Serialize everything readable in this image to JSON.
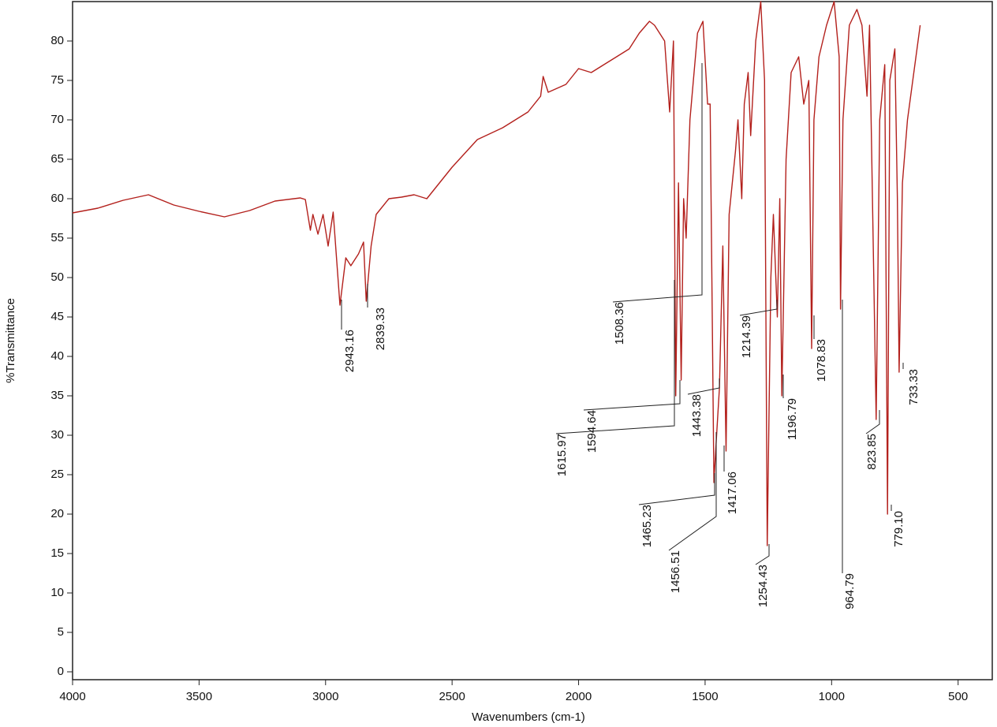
{
  "chart_data": {
    "type": "line",
    "x_label": "Wavenumbers (cm-1)",
    "y_label": "%Transmittance",
    "xlim": [
      4000,
      365
    ],
    "ylim": [
      -1,
      85
    ],
    "xticks": [
      4000,
      3500,
      3000,
      2500,
      2000,
      1500,
      1000,
      500
    ],
    "yticks": [
      0,
      5,
      10,
      15,
      20,
      25,
      30,
      35,
      40,
      45,
      50,
      55,
      60,
      65,
      70,
      75,
      80
    ],
    "series": [
      {
        "name": "%Transmittance",
        "color": "#b3201c",
        "x": [
          4000,
          3900,
          3800,
          3700,
          3600,
          3500,
          3400,
          3300,
          3200,
          3100,
          3080,
          3060,
          3050,
          3030,
          3010,
          2990,
          2970,
          2943.16,
          2920,
          2900,
          2870,
          2850,
          2839.33,
          2820,
          2800,
          2750,
          2700,
          2650,
          2600,
          2500,
          2400,
          2300,
          2200,
          2150,
          2140,
          2120,
          2050,
          2000,
          1950,
          1900,
          1850,
          1800,
          1760,
          1720,
          1700,
          1660,
          1640,
          1625,
          1615.97,
          1605,
          1594.64,
          1585,
          1575,
          1560,
          1530,
          1508.36,
          1490,
          1480,
          1465.23,
          1456.51,
          1443.38,
          1430,
          1417.06,
          1405,
          1380,
          1370,
          1355,
          1345,
          1330,
          1320,
          1300,
          1280,
          1265,
          1254.43,
          1240,
          1230,
          1214.39,
          1205,
          1196.79,
          1180,
          1160,
          1130,
          1110,
          1090,
          1078.83,
          1070,
          1050,
          1020,
          990,
          970,
          964.79,
          955,
          930,
          900,
          880,
          860,
          850,
          823.85,
          810,
          790,
          779.1,
          770,
          750,
          740,
          733.33,
          720,
          700,
          650
        ],
        "values": [
          58.2,
          58.8,
          59.8,
          60.5,
          59.2,
          58.4,
          57.7,
          58.5,
          59.7,
          60.1,
          59.9,
          56,
          58,
          55.5,
          58,
          54,
          58.3,
          46.5,
          52.5,
          51.5,
          53,
          54.5,
          47,
          54,
          58,
          60,
          60.2,
          60.5,
          60,
          64,
          67.5,
          69,
          71,
          73,
          75.5,
          73.5,
          74.5,
          76.5,
          76,
          77,
          78,
          79,
          81,
          82.5,
          82,
          80,
          71,
          80,
          35,
          62,
          37,
          60,
          55,
          70,
          81,
          82.5,
          72,
          72,
          24,
          29,
          36,
          54,
          28,
          58,
          66,
          70,
          60,
          72,
          76,
          68,
          80,
          85,
          75,
          16,
          50,
          58,
          45,
          60,
          35,
          65,
          76,
          78,
          72,
          75,
          41,
          70,
          78,
          82,
          85,
          78,
          46,
          70,
          82,
          84,
          82,
          73,
          82,
          32,
          70,
          77,
          20,
          75,
          79,
          60,
          38,
          62,
          70,
          82
        ]
      }
    ],
    "annotations": [
      "2943.16",
      "2839.33",
      "1508.36",
      "1615.97",
      "1594.64",
      "1443.38",
      "1465.23",
      "1456.51",
      "1417.06",
      "1214.39",
      "1196.79",
      "1254.43",
      "1078.83",
      "964.79",
      "823.85",
      "779.10",
      "733.33"
    ]
  }
}
